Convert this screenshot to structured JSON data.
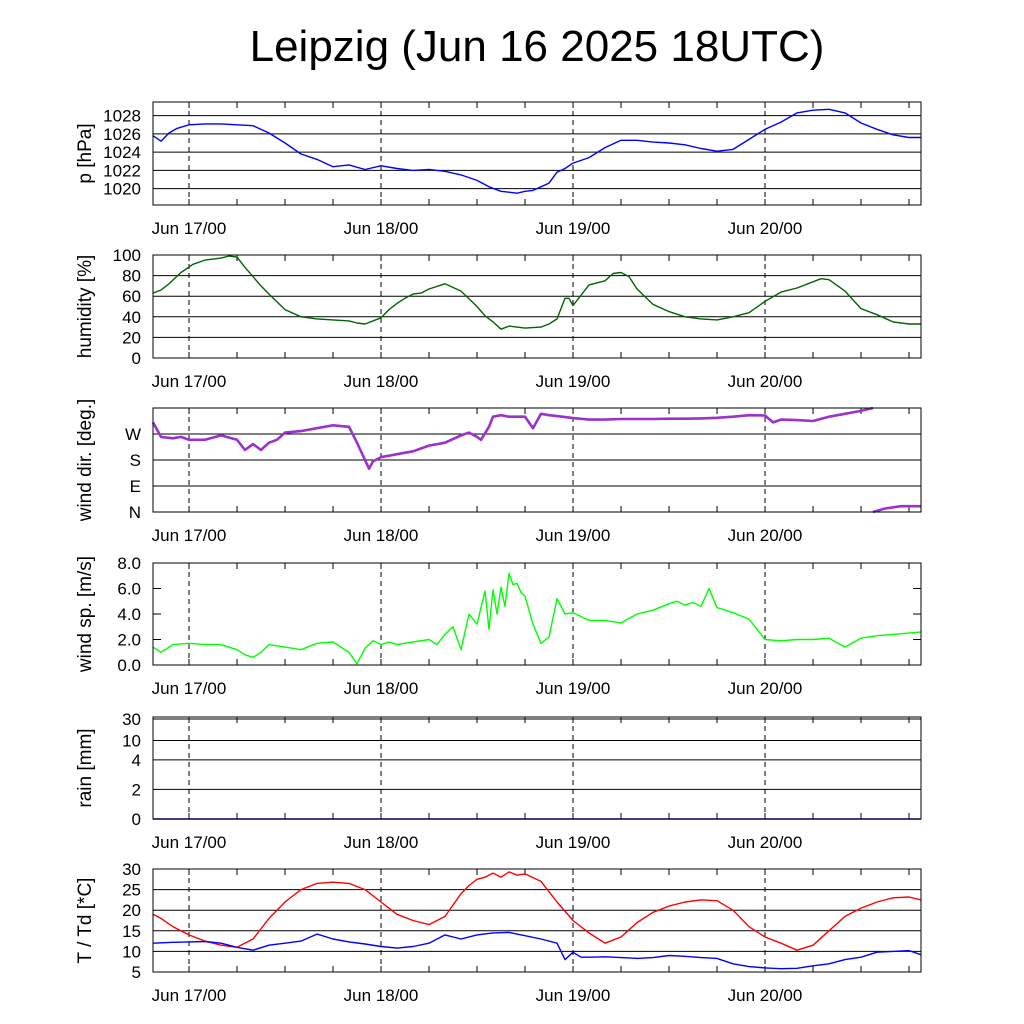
{
  "title": "Leipzig (Jun 16 2025 18UTC)",
  "x_axis": {
    "tick_labels": [
      "Jun 17/00",
      "Jun 18/00",
      "Jun 19/00",
      "Jun 20/00"
    ],
    "tick_hours": [
      6,
      30,
      54,
      78
    ],
    "range_hours": [
      1.5,
      97.5
    ],
    "origin": "Jun 16 2025 18UTC"
  },
  "chart_data": [
    {
      "type": "line",
      "ylabel": "p [hPa]",
      "ylim": [
        1018.2,
        1029.5
      ],
      "yticks": [
        1020,
        1022,
        1024,
        1026,
        1028
      ],
      "ytick_labels": [
        "1020",
        "1022",
        "1024",
        "1026",
        "1028"
      ],
      "grid": true,
      "series": [
        {
          "color": "#0000ff",
          "x": [
            1.5,
            2.5,
            3.5,
            4.5,
            6,
            8,
            10,
            12,
            14,
            16,
            18,
            20,
            22,
            24,
            26,
            28,
            30,
            32,
            34,
            36,
            38,
            40,
            42,
            43.5,
            45,
            46,
            47,
            48,
            49,
            50,
            51,
            52,
            53,
            54,
            56,
            58,
            60,
            62,
            64,
            66,
            68,
            70,
            72,
            74,
            76,
            78,
            80,
            82,
            84,
            86,
            88,
            90,
            92,
            94,
            96,
            97.5
          ],
          "y": [
            1025.8,
            1025.2,
            1026.1,
            1026.6,
            1027,
            1027.1,
            1027.1,
            1027,
            1026.9,
            1026.1,
            1025,
            1023.8,
            1023.2,
            1022.4,
            1022.6,
            1022.1,
            1022.5,
            1022.2,
            1022,
            1022.1,
            1021.9,
            1021.5,
            1020.9,
            1020.2,
            1019.7,
            1019.6,
            1019.5,
            1019.7,
            1019.8,
            1020.2,
            1020.6,
            1021.8,
            1022.2,
            1022.8,
            1023.4,
            1024.5,
            1025.3,
            1025.3,
            1025.1,
            1025,
            1024.8,
            1024.4,
            1024.1,
            1024.3,
            1025.4,
            1026.5,
            1027.3,
            1028.3,
            1028.6,
            1028.7,
            1028.3,
            1027.2,
            1026.5,
            1025.9,
            1025.6,
            1025.6
          ]
        }
      ]
    },
    {
      "type": "line",
      "ylabel": "humidity [%]",
      "ylim": [
        0,
        100
      ],
      "yticks": [
        0,
        20,
        40,
        60,
        80,
        100
      ],
      "ytick_labels": [
        "0",
        "20",
        "40",
        "60",
        "80",
        "100"
      ],
      "grid": true,
      "series": [
        {
          "color": "#006400",
          "x": [
            1.5,
            2.5,
            3.5,
            5,
            6.5,
            8,
            10,
            11,
            12,
            13,
            14,
            15,
            16,
            18,
            20,
            22,
            24,
            26,
            27,
            28,
            30,
            31,
            32,
            33,
            34,
            35,
            36,
            38,
            40,
            42,
            43,
            44,
            45,
            46,
            47,
            48,
            50,
            51,
            52,
            52.5,
            53,
            53.5,
            54,
            56,
            58,
            59,
            60,
            61,
            62,
            64,
            66,
            68,
            70,
            72,
            74,
            76,
            78,
            80,
            82,
            84,
            85,
            86,
            88,
            90,
            92,
            94,
            96,
            97.5
          ],
          "y": [
            63,
            66,
            72,
            83,
            91,
            95,
            97,
            99,
            98,
            88,
            79,
            70,
            62,
            47,
            40,
            38,
            37,
            36,
            34,
            33,
            39,
            47,
            53,
            58,
            62,
            63,
            67,
            72,
            65,
            50,
            41,
            35,
            28,
            31,
            30,
            29,
            30,
            33,
            38,
            48,
            58,
            58,
            51,
            71,
            75,
            82,
            83,
            79,
            67,
            52,
            45,
            40,
            38,
            37,
            40,
            44,
            55,
            64,
            68,
            74,
            77,
            76,
            65,
            48,
            42,
            35,
            33,
            33
          ]
        }
      ]
    },
    {
      "type": "scatter",
      "ylabel": "wind dir. [deg.]",
      "ylim": [
        0,
        360
      ],
      "yticks": [
        0,
        90,
        180,
        270
      ],
      "ytick_labels": [
        "N",
        "E",
        "S",
        "W"
      ],
      "grid": true,
      "series": [
        {
          "color": "#9933cc",
          "x": [
            1.5,
            2.5,
            4,
            5,
            6,
            8,
            10,
            12,
            13,
            14,
            15,
            16,
            17,
            18,
            20,
            22,
            24,
            26,
            27,
            28,
            28.5,
            29,
            30,
            31,
            32,
            34,
            36,
            38,
            40,
            41,
            42,
            42.5,
            43.5,
            44,
            45,
            46,
            48,
            49,
            50,
            51,
            52,
            54,
            56,
            58,
            60,
            62,
            64,
            66,
            68,
            70,
            72,
            74,
            76,
            78,
            79,
            80,
            82,
            84,
            86,
            88,
            90,
            91.5
          ],
          "y": [
            310,
            260,
            255,
            260,
            250,
            250,
            265,
            250,
            215,
            235,
            215,
            240,
            250,
            275,
            280,
            290,
            300,
            295,
            240,
            180,
            150,
            175,
            190,
            195,
            200,
            210,
            230,
            240,
            265,
            275,
            260,
            250,
            295,
            330,
            335,
            330,
            330,
            290,
            340,
            335,
            332,
            325,
            320,
            320,
            322,
            322,
            322,
            323,
            323,
            324,
            326,
            330,
            335,
            334,
            310,
            320,
            318,
            315,
            330,
            340,
            350,
            360
          ]
        },
        {
          "color": "#9933cc",
          "x": [
            91.5,
            93,
            95,
            97.5
          ],
          "y": [
            0,
            12,
            20,
            20
          ]
        }
      ]
    },
    {
      "type": "line",
      "ylabel": "wind sp. [m/s]",
      "ylim": [
        0,
        8
      ],
      "yticks": [
        0,
        2,
        4,
        6,
        8
      ],
      "ytick_labels": [
        "0.0",
        "2.0",
        "4.0",
        "6.0",
        "8.0"
      ],
      "grid": false,
      "series": [
        {
          "color": "#00ff00",
          "x": [
            1.5,
            2.5,
            4,
            6,
            8,
            10,
            12,
            13,
            14,
            15,
            16,
            18,
            20,
            22,
            24,
            26,
            27,
            28,
            29,
            30,
            31,
            32,
            34,
            36,
            37,
            38,
            39,
            40,
            41,
            42,
            43,
            43.5,
            44,
            44.5,
            45,
            45.5,
            46,
            46.5,
            47,
            47.5,
            48,
            49,
            50,
            51,
            52,
            53,
            54,
            56,
            58,
            60,
            62,
            64,
            66,
            67,
            68,
            69,
            70,
            71,
            72,
            74,
            76,
            78,
            80,
            82,
            84,
            86,
            88,
            90,
            92,
            94,
            96,
            97.5
          ],
          "y": [
            1.4,
            1,
            1.6,
            1.7,
            1.6,
            1.6,
            1.2,
            0.8,
            0.6,
            1.0,
            1.6,
            1.4,
            1.2,
            1.7,
            1.8,
            1,
            0.1,
            1.3,
            1.9,
            1.6,
            1.8,
            1.6,
            1.8,
            2,
            1.6,
            2.4,
            3.0,
            1.2,
            4.0,
            3.2,
            5.8,
            2.8,
            5.9,
            4.0,
            6.1,
            4.6,
            7.2,
            6.3,
            6.4,
            5.7,
            5.4,
            3.2,
            1.7,
            2.2,
            5.2,
            4.0,
            4.1,
            3.5,
            3.5,
            3.3,
            4.0,
            4.3,
            4.8,
            5.0,
            4.7,
            4.9,
            4.6,
            6.0,
            4.5,
            4.1,
            3.6,
            2.0,
            1.9,
            2.0,
            2.0,
            2.1,
            1.4,
            2.1,
            2.3,
            2.4,
            2.5,
            2.6
          ]
        }
      ]
    },
    {
      "type": "line",
      "ylabel": "rain [mm]",
      "scale": "nonlinear",
      "yticks": [
        0,
        2,
        4,
        10,
        30
      ],
      "ytick_labels": [
        "0",
        "2",
        "4",
        "10",
        "30"
      ],
      "grid": true,
      "series": [
        {
          "color": "#0000ff",
          "x": [
            1.5,
            97.5
          ],
          "y": [
            0,
            0
          ]
        }
      ]
    },
    {
      "type": "line",
      "ylabel": "T / Td [*C]",
      "ylim": [
        5,
        30
      ],
      "yticks": [
        5,
        10,
        15,
        20,
        25,
        30
      ],
      "ytick_labels": [
        "5",
        "10",
        "15",
        "20",
        "25",
        "30"
      ],
      "grid": true,
      "series": [
        {
          "color": "#ff0000",
          "x": [
            1.5,
            2.5,
            4,
            6,
            8,
            10,
            12,
            14,
            16,
            18,
            20,
            22,
            24,
            26,
            28,
            30,
            32,
            34,
            36,
            38,
            40,
            41,
            42,
            43,
            44,
            45,
            46,
            47,
            48,
            50,
            52,
            54,
            56,
            58,
            60,
            62,
            64,
            66,
            68,
            70,
            72,
            74,
            76,
            78,
            80,
            82,
            84,
            86,
            88,
            90,
            92,
            94,
            96,
            97.5
          ],
          "y": [
            19,
            18,
            16,
            14,
            12.5,
            11.5,
            11,
            13,
            18,
            22,
            25,
            26.5,
            26.8,
            26.5,
            25,
            22,
            19,
            17.5,
            16.5,
            18.5,
            24,
            26,
            27.5,
            28,
            29,
            28,
            29.3,
            28.5,
            28.8,
            27,
            22,
            17.5,
            14.5,
            12,
            13.5,
            17,
            19.5,
            21,
            22,
            22.5,
            22.3,
            20,
            16,
            13.5,
            12,
            10.3,
            11.5,
            15,
            18.5,
            20.5,
            22,
            23,
            23.2,
            22.5
          ]
        },
        {
          "color": "#0000ff",
          "x": [
            1.5,
            4,
            6,
            8,
            10,
            12,
            14,
            16,
            18,
            20,
            22,
            24,
            26,
            28,
            30,
            32,
            34,
            36,
            38,
            40,
            42,
            44,
            46,
            48,
            50,
            52,
            53,
            54,
            55,
            56,
            58,
            60,
            62,
            64,
            66,
            68,
            70,
            72,
            74,
            76,
            78,
            80,
            82,
            84,
            86,
            88,
            90,
            92,
            94,
            96,
            97.5
          ],
          "y": [
            12,
            12.2,
            12.3,
            12.4,
            12,
            11,
            10.3,
            11.5,
            12,
            12.5,
            14.2,
            13,
            12.3,
            11.8,
            11.2,
            10.8,
            11.2,
            12,
            14,
            13,
            14,
            14.5,
            14.6,
            13.8,
            13,
            12,
            8,
            9.8,
            8.6,
            8.6,
            8.7,
            8.5,
            8.3,
            8.5,
            9,
            8.8,
            8.5,
            8.3,
            7.0,
            6.3,
            6.0,
            5.8,
            5.9,
            6.5,
            7,
            8,
            8.6,
            9.8,
            10,
            10.2,
            9.2
          ]
        }
      ]
    }
  ]
}
